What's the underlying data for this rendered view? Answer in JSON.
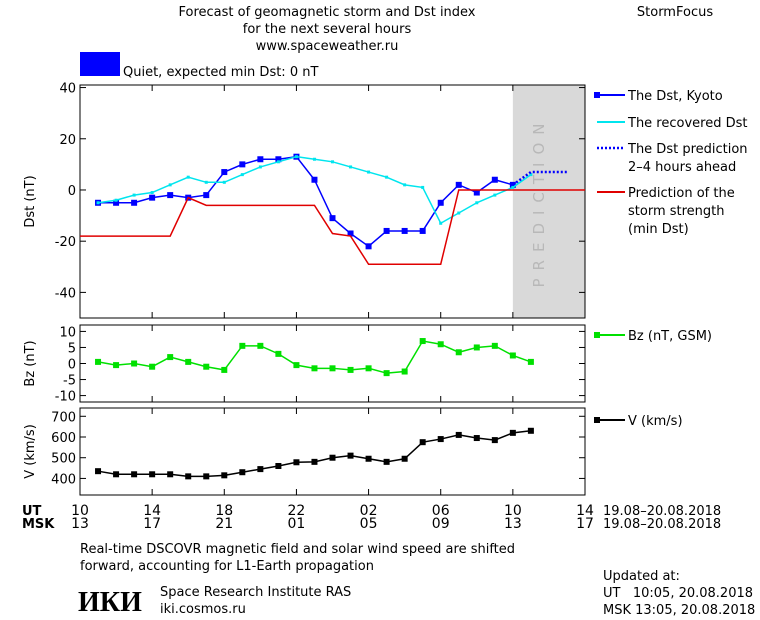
{
  "header": {
    "title_lines": [
      "Forecast of geomagnetic storm and Dst index",
      "for the next several hours",
      "www.spaceweather.ru"
    ],
    "brand": "StormFocus",
    "quiet_label": "Quiet, expected min Dst: 0 nT",
    "quiet_color": "#0000ff"
  },
  "chart_data": [
    {
      "type": "line",
      "ylabel": "Dst (nT)",
      "xlim": [
        0,
        28
      ],
      "ylim": [
        -50,
        41
      ],
      "yticks": [
        -40,
        -20,
        0,
        20,
        40
      ],
      "prediction_region": [
        24,
        28
      ],
      "prediction_label": "PREDICTION",
      "series": [
        {
          "name": "The Dst, Kyoto",
          "color": "#0000ff",
          "marker": "square",
          "dash": false,
          "x": [
            1,
            2,
            3,
            4,
            5,
            6,
            7,
            8,
            9,
            10,
            11,
            12,
            13,
            14,
            15,
            16,
            17,
            18,
            19,
            20,
            21,
            22,
            23,
            24
          ],
          "values": [
            -5,
            -5,
            -5,
            -3,
            -2,
            -3,
            -2,
            7,
            10,
            12,
            12,
            13,
            4,
            -11,
            -17,
            -22,
            -16,
            -16,
            -16,
            -5,
            2,
            -1,
            4,
            2
          ]
        },
        {
          "name": "The recovered Dst",
          "color": "#00e5ee",
          "marker": "dot",
          "dash": false,
          "x": [
            1,
            2,
            3,
            4,
            5,
            6,
            7,
            8,
            9,
            10,
            11,
            12,
            13,
            14,
            15,
            16,
            17,
            18,
            19,
            20,
            21,
            22,
            23,
            24,
            25
          ],
          "values": [
            -5,
            -4,
            -2,
            -1,
            2,
            5,
            3,
            3,
            6,
            9,
            11,
            13,
            12,
            11,
            9,
            7,
            5,
            2,
            1,
            -13,
            -9,
            -5,
            -2,
            1,
            6
          ]
        },
        {
          "name": "The Dst prediction\n2–4 hours ahead",
          "color": "#0000ff",
          "marker": "none",
          "dash": true,
          "x": [
            24,
            25,
            27
          ],
          "values": [
            2,
            7,
            7
          ]
        },
        {
          "name": "Prediction of the\nstorm strength\n(min Dst)",
          "color": "#e00000",
          "marker": "none",
          "dash": false,
          "x": [
            0,
            5,
            6,
            7,
            13,
            14,
            15,
            16,
            20,
            21,
            28
          ],
          "values": [
            -18,
            -18,
            -3,
            -6,
            -6,
            -17,
            -18,
            -29,
            -29,
            0,
            0
          ]
        }
      ]
    },
    {
      "type": "line",
      "ylabel": "Bz (nT)",
      "xlim": [
        0,
        28
      ],
      "ylim": [
        -12,
        12
      ],
      "yticks": [
        -10,
        -5,
        0,
        5,
        10
      ],
      "series": [
        {
          "name": "Bz (nT, GSM)",
          "color": "#00e000",
          "marker": "square",
          "dash": false,
          "x": [
            1,
            2,
            3,
            4,
            5,
            6,
            7,
            8,
            9,
            10,
            11,
            12,
            13,
            14,
            15,
            16,
            17,
            18,
            19,
            20,
            21,
            22,
            23,
            24,
            25
          ],
          "values": [
            0.5,
            -0.5,
            0,
            -1,
            2,
            0.5,
            -1,
            -2,
            5.5,
            5.5,
            3,
            -0.5,
            -1.5,
            -1.5,
            -2,
            -1.5,
            -3,
            -2.5,
            7,
            6,
            3.5,
            5,
            5.5,
            2.5,
            0.5
          ]
        }
      ]
    },
    {
      "type": "line",
      "ylabel": "V (km/s)",
      "xlim": [
        0,
        28
      ],
      "ylim": [
        320,
        740
      ],
      "yticks": [
        400,
        500,
        600,
        700
      ],
      "xticks": [
        {
          "value": 0,
          "label": "10"
        },
        {
          "value": 4,
          "label": "14"
        },
        {
          "value": 8,
          "label": "18"
        },
        {
          "value": 12,
          "label": "22"
        },
        {
          "value": 16,
          "label": "02"
        },
        {
          "value": 20,
          "label": "06"
        },
        {
          "value": 24,
          "label": "10"
        },
        {
          "value": 28,
          "label": "14"
        }
      ],
      "msk_labels": [
        "13",
        "17",
        "21",
        "01",
        "05",
        "09",
        "13",
        "17"
      ],
      "x_row_names": [
        "UT",
        "MSK"
      ],
      "x_row_dates": [
        "19.08–20.08.2018",
        "19.08–20.08.2018"
      ],
      "series": [
        {
          "name": "V (km/s)",
          "color": "#000000",
          "marker": "square",
          "dash": false,
          "x": [
            1,
            2,
            3,
            4,
            5,
            6,
            7,
            8,
            9,
            10,
            11,
            12,
            13,
            14,
            15,
            16,
            17,
            18,
            19,
            20,
            21,
            22,
            23,
            24,
            25
          ],
          "values": [
            435,
            420,
            420,
            420,
            420,
            410,
            410,
            415,
            430,
            445,
            460,
            478,
            480,
            500,
            510,
            495,
            480,
            495,
            575,
            590,
            610,
            595,
            585,
            620,
            630
          ]
        }
      ]
    }
  ],
  "footer": {
    "note_lines": [
      "Real-time DSCOVR magnetic field and solar wind speed are shifted",
      "forward, accounting for L1-Earth propagation"
    ],
    "logo": "ИКИ",
    "institute": "Space Research Institute RAS",
    "url": "iki.cosmos.ru",
    "updated_title": "Updated at:",
    "updated_ut": "UT   10:05, 20.08.2018",
    "updated_msk": "MSK 13:05, 20.08.2018"
  }
}
